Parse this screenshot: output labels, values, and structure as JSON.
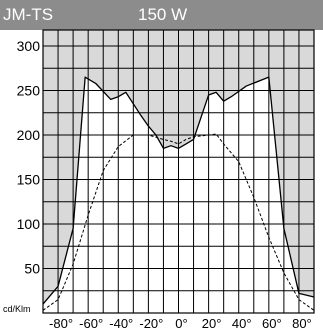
{
  "header": {
    "name": "JM-TS",
    "power": "150 W"
  },
  "chart_data": {
    "type": "line",
    "unit_label": "cd/Klm",
    "xlim": [
      -90,
      90
    ],
    "ylim": [
      0,
      300
    ],
    "x_ticks": [
      -80,
      -60,
      -40,
      -20,
      0,
      20,
      40,
      60,
      80
    ],
    "x_tick_labels": [
      "-80°",
      "-60°",
      "-40°",
      "-20°",
      "0°",
      "20°",
      "40°",
      "60°",
      "80°"
    ],
    "y_ticks": [
      50,
      100,
      150,
      200,
      250,
      300
    ],
    "y_tick_labels": [
      "50",
      "100",
      "150",
      "200",
      "250",
      "300"
    ],
    "grid": true,
    "colors": {
      "header": "#8c8c8c",
      "fill": "#d9d9d9",
      "line": "#000000"
    },
    "series": [
      {
        "style": "solid",
        "filled_above": true,
        "points": [
          [
            -90,
            10
          ],
          [
            -80,
            30
          ],
          [
            -70,
            95
          ],
          [
            -62,
            265
          ],
          [
            -55,
            258
          ],
          [
            -45,
            240
          ],
          [
            -40,
            243
          ],
          [
            -35,
            248
          ],
          [
            -25,
            222
          ],
          [
            -20,
            210
          ],
          [
            -15,
            200
          ],
          [
            -10,
            185
          ],
          [
            -5,
            188
          ],
          [
            0,
            185
          ],
          [
            5,
            190
          ],
          [
            10,
            195
          ],
          [
            15,
            220
          ],
          [
            20,
            245
          ],
          [
            25,
            248
          ],
          [
            30,
            238
          ],
          [
            35,
            243
          ],
          [
            45,
            255
          ],
          [
            60,
            265
          ],
          [
            70,
            95
          ],
          [
            80,
            22
          ],
          [
            90,
            18
          ]
        ]
      },
      {
        "style": "dashed",
        "filled_above": false,
        "points": [
          [
            -90,
            3
          ],
          [
            -80,
            15
          ],
          [
            -70,
            55
          ],
          [
            -60,
            110
          ],
          [
            -50,
            160
          ],
          [
            -40,
            187
          ],
          [
            -30,
            200
          ],
          [
            -20,
            200
          ],
          [
            -10,
            195
          ],
          [
            -5,
            193
          ],
          [
            0,
            190
          ],
          [
            5,
            195
          ],
          [
            10,
            198
          ],
          [
            20,
            200
          ],
          [
            25,
            201
          ],
          [
            30,
            190
          ],
          [
            40,
            170
          ],
          [
            50,
            130
          ],
          [
            60,
            85
          ],
          [
            70,
            45
          ],
          [
            80,
            15
          ],
          [
            90,
            3
          ]
        ]
      }
    ]
  }
}
